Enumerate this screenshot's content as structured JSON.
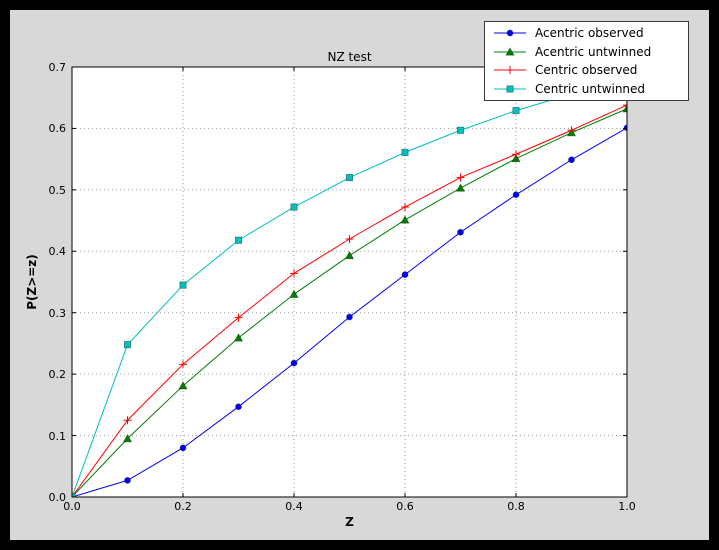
{
  "colors": {
    "frame": "#000000",
    "figure_bg": "#d8d8d8",
    "plot_bg": "#ffffff",
    "grid": "#9b9b9b",
    "spine": "#000000"
  },
  "chart_data": {
    "type": "line",
    "title": "NZ test",
    "xlabel": "Z",
    "ylabel": "P(Z>=z)",
    "xlim": [
      0.0,
      1.0
    ],
    "ylim": [
      0.0,
      0.7
    ],
    "xticks": [
      "0.0",
      "0.2",
      "0.4",
      "0.6",
      "0.8",
      "1.0"
    ],
    "yticks": [
      "0.0",
      "0.1",
      "0.2",
      "0.3",
      "0.4",
      "0.5",
      "0.6",
      "0.7"
    ],
    "grid": true,
    "legend_position": "upper right, overlapping top of axes",
    "x": [
      0.0,
      0.1,
      0.2,
      0.3,
      0.4,
      0.5,
      0.6,
      0.7,
      0.8,
      0.9,
      1.0
    ],
    "series": [
      {
        "name": "Acentric observed",
        "color": "#0000ff",
        "marker": "circle",
        "values": [
          0.0,
          0.027,
          0.08,
          0.147,
          0.218,
          0.293,
          0.362,
          0.431,
          0.492,
          0.549,
          0.601
        ]
      },
      {
        "name": "Acentric untwinned",
        "color": "#008000",
        "marker": "triangle",
        "values": [
          0.0,
          0.095,
          0.181,
          0.259,
          0.33,
          0.393,
          0.451,
          0.503,
          0.551,
          0.593,
          0.632
        ]
      },
      {
        "name": "Centric observed",
        "color": "#ff0000",
        "marker": "plus",
        "values": [
          0.0,
          0.125,
          0.216,
          0.292,
          0.364,
          0.42,
          0.472,
          0.52,
          0.558,
          0.597,
          0.638
        ]
      },
      {
        "name": "Centric untwinned",
        "color": "#00bfbf",
        "marker": "square",
        "values": [
          0.0,
          0.248,
          0.345,
          0.418,
          0.472,
          0.52,
          0.561,
          0.597,
          0.629,
          0.656,
          0.683
        ]
      }
    ]
  }
}
